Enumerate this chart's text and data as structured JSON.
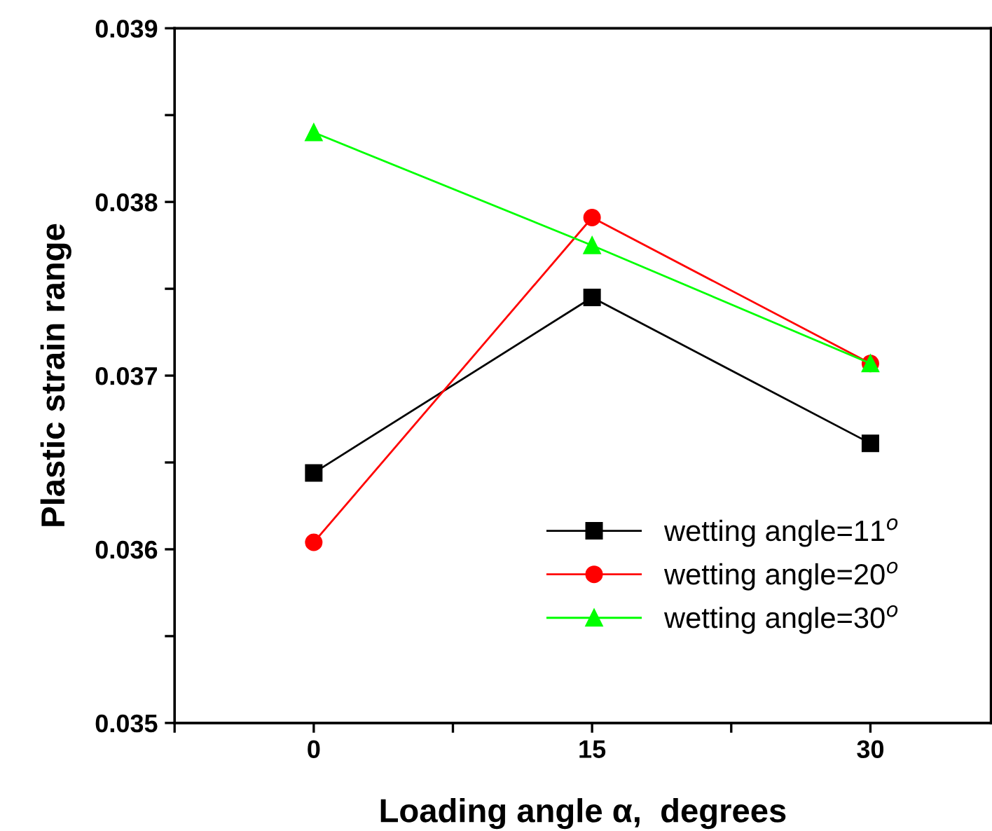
{
  "chart_data": {
    "type": "line",
    "xlabel": "Loading angle α,  degrees",
    "ylabel": "Plastic strain range",
    "x": [
      0,
      15,
      30
    ],
    "series": [
      {
        "name": "wetting angle=11$^{o}$",
        "color": "#000000",
        "marker": "square",
        "values": [
          0.03644,
          0.03745,
          0.03661
        ]
      },
      {
        "name": "wetting angle=20$^{o}$",
        "color": "#ff0000",
        "marker": "circle",
        "values": [
          0.03604,
          0.03791,
          0.03707
        ]
      },
      {
        "name": "wetting angle=30$^{o}$",
        "color": "#00ff00",
        "marker": "triangle",
        "values": [
          0.0384,
          0.03775,
          0.03707
        ]
      }
    ],
    "xlim": [
      -7.5,
      36.5
    ],
    "xticks": [
      {
        "value": -7.5,
        "label": null
      },
      0,
      {
        "value": 7.5,
        "label": null
      },
      15,
      {
        "value": 22.5,
        "label": null
      },
      30
    ],
    "ylim": [
      0.035,
      0.039
    ],
    "yticks": [
      0.035,
      {
        "value": 0.0355,
        "label": null
      },
      0.036,
      {
        "value": 0.0365,
        "label": null
      },
      0.037,
      {
        "value": 0.0375,
        "label": null
      },
      0.038,
      {
        "value": 0.0385,
        "label": null
      },
      0.039
    ],
    "grid": false,
    "legend": "bottom right",
    "line_style": "solid"
  }
}
